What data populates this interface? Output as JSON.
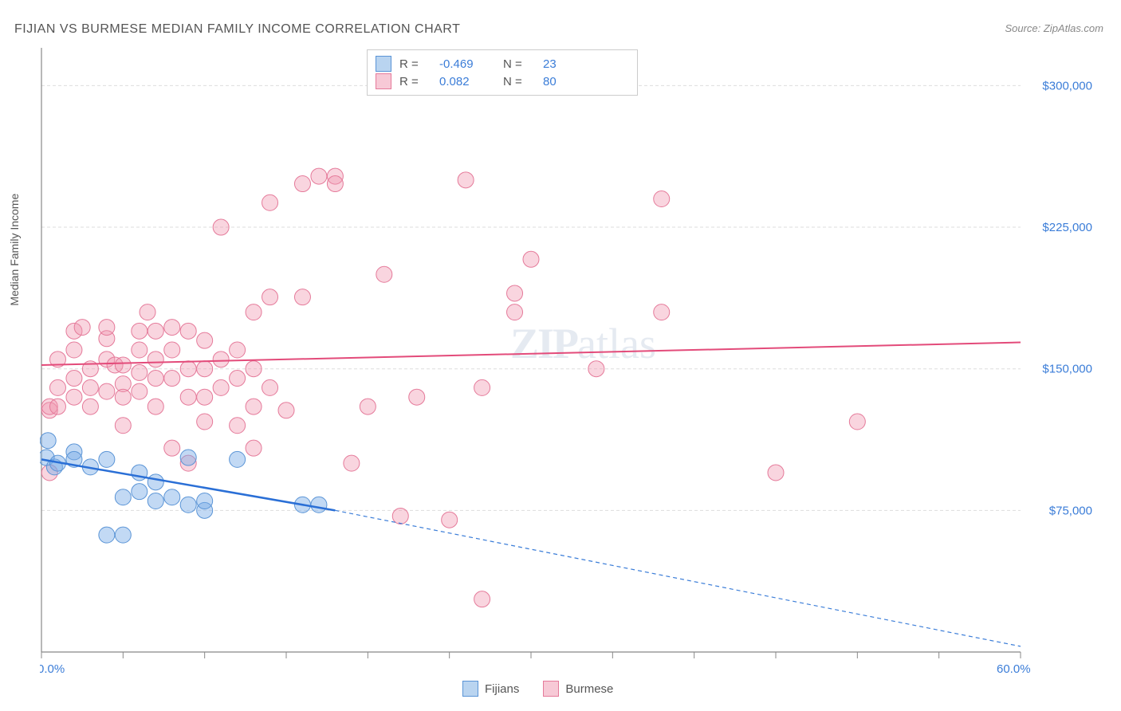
{
  "title": "FIJIAN VS BURMESE MEDIAN FAMILY INCOME CORRELATION CHART",
  "source_label": "Source: ",
  "source_value": "ZipAtlas.com",
  "ylabel": "Median Family Income",
  "watermark_zip": "ZIP",
  "watermark_atlas": "atlas",
  "chart": {
    "type": "scatter",
    "background_color": "#ffffff",
    "grid_color": "#dddddd",
    "grid_dash": "4,3",
    "axis_color": "#888888",
    "xlim": [
      0,
      60
    ],
    "ylim": [
      0,
      320000
    ],
    "y_ticks": [
      75000,
      150000,
      225000,
      300000
    ],
    "y_tick_labels": [
      "$75,000",
      "$150,000",
      "$225,000",
      "$300,000"
    ],
    "x_tick_positions": [
      0,
      5,
      10,
      15,
      20,
      25,
      30,
      35,
      40,
      45,
      50,
      55,
      60
    ],
    "x_start_label": "0.0%",
    "x_end_label": "60.0%",
    "label_color": "#3b7dd8",
    "label_fontsize": 15
  },
  "series_fijians": {
    "label": "Fijians",
    "fill_color": "rgba(120,170,230,0.45)",
    "stroke_color": "#5a94d6",
    "swatch_fill": "#b9d4f0",
    "swatch_border": "#5a94d6",
    "marker_radius": 10,
    "R_label": "R =",
    "R_value": "-0.469",
    "N_label": "N =",
    "N_value": "23",
    "points": [
      [
        0.3,
        103000
      ],
      [
        0.4,
        112000
      ],
      [
        0.8,
        98000
      ],
      [
        1,
        100000
      ],
      [
        2,
        106000
      ],
      [
        2,
        102000
      ],
      [
        3,
        98000
      ],
      [
        4,
        102000
      ],
      [
        4,
        62000
      ],
      [
        5,
        62000
      ],
      [
        5,
        82000
      ],
      [
        6,
        85000
      ],
      [
        6,
        95000
      ],
      [
        7,
        90000
      ],
      [
        7,
        80000
      ],
      [
        8,
        82000
      ],
      [
        9,
        103000
      ],
      [
        9,
        78000
      ],
      [
        10,
        75000
      ],
      [
        10,
        80000
      ],
      [
        12,
        102000
      ],
      [
        16,
        78000
      ],
      [
        17,
        78000
      ]
    ],
    "trend": {
      "solid": {
        "x1": 0,
        "y1": 102000,
        "x2": 18,
        "y2": 75000,
        "color": "#2a6fd6",
        "width": 2.5
      },
      "dashed": {
        "x1": 18,
        "y1": 75000,
        "x2": 60,
        "y2": 3000,
        "color": "#3b7dd8",
        "width": 1.2,
        "dash": "5,4"
      }
    }
  },
  "series_burmese": {
    "label": "Burmese",
    "fill_color": "rgba(240,150,175,0.4)",
    "stroke_color": "#e57a9a",
    "swatch_fill": "#f7c9d6",
    "swatch_border": "#e57a9a",
    "marker_radius": 10,
    "R_label": "R =",
    "R_value": "0.082",
    "N_label": "N =",
    "N_value": "80",
    "points": [
      [
        0.5,
        128000
      ],
      [
        0.5,
        95000
      ],
      [
        0.5,
        130000
      ],
      [
        1,
        155000
      ],
      [
        1,
        140000
      ],
      [
        1,
        130000
      ],
      [
        2,
        170000
      ],
      [
        2,
        160000
      ],
      [
        2,
        145000
      ],
      [
        2,
        135000
      ],
      [
        2.5,
        172000
      ],
      [
        3,
        150000
      ],
      [
        3,
        140000
      ],
      [
        3,
        130000
      ],
      [
        4,
        166000
      ],
      [
        4,
        155000
      ],
      [
        4,
        172000
      ],
      [
        4,
        138000
      ],
      [
        4.5,
        152000
      ],
      [
        5,
        152000
      ],
      [
        5,
        142000
      ],
      [
        5,
        135000
      ],
      [
        5,
        120000
      ],
      [
        6,
        170000
      ],
      [
        6,
        160000
      ],
      [
        6,
        148000
      ],
      [
        6,
        138000
      ],
      [
        6.5,
        180000
      ],
      [
        7,
        170000
      ],
      [
        7,
        155000
      ],
      [
        7,
        145000
      ],
      [
        7,
        130000
      ],
      [
        8,
        172000
      ],
      [
        8,
        160000
      ],
      [
        8,
        145000
      ],
      [
        8,
        108000
      ],
      [
        9,
        170000
      ],
      [
        9,
        150000
      ],
      [
        9,
        135000
      ],
      [
        9,
        100000
      ],
      [
        10,
        165000
      ],
      [
        10,
        150000
      ],
      [
        10,
        135000
      ],
      [
        10,
        122000
      ],
      [
        11,
        225000
      ],
      [
        11,
        155000
      ],
      [
        11,
        140000
      ],
      [
        12,
        160000
      ],
      [
        12,
        145000
      ],
      [
        12,
        120000
      ],
      [
        13,
        180000
      ],
      [
        13,
        150000
      ],
      [
        13,
        130000
      ],
      [
        13,
        108000
      ],
      [
        14,
        188000
      ],
      [
        14,
        238000
      ],
      [
        14,
        140000
      ],
      [
        15,
        128000
      ],
      [
        16,
        248000
      ],
      [
        16,
        188000
      ],
      [
        17,
        252000
      ],
      [
        18,
        252000
      ],
      [
        18,
        248000
      ],
      [
        19,
        100000
      ],
      [
        20,
        130000
      ],
      [
        21,
        200000
      ],
      [
        22,
        72000
      ],
      [
        23,
        135000
      ],
      [
        25,
        70000
      ],
      [
        26,
        250000
      ],
      [
        27,
        140000
      ],
      [
        27,
        28000
      ],
      [
        29,
        180000
      ],
      [
        29,
        190000
      ],
      [
        30,
        208000
      ],
      [
        34,
        150000
      ],
      [
        38,
        240000
      ],
      [
        38,
        180000
      ],
      [
        45,
        95000
      ],
      [
        50,
        122000
      ]
    ],
    "trend": {
      "line": {
        "x1": 0,
        "y1": 152000,
        "x2": 60,
        "y2": 164000,
        "color": "#e34b7a",
        "width": 2
      }
    }
  },
  "legend_bottom": {
    "item1": "Fijians",
    "item2": "Burmese"
  }
}
